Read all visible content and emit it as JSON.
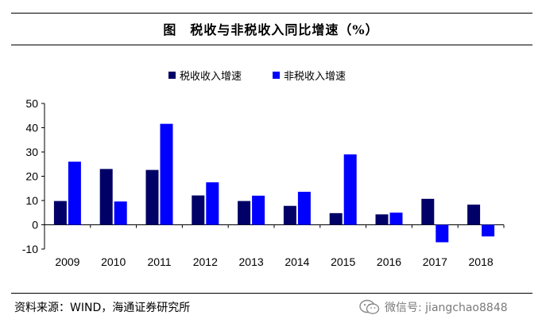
{
  "header": {
    "title": "图　税收与非税收入同比增速（%）"
  },
  "footer": {
    "source": "资料来源：WIND，海通证券研究所",
    "watermark": "微信号: jiangchao8848"
  },
  "chart_data": {
    "type": "bar",
    "title": "",
    "xlabel": "",
    "ylabel": "",
    "categories": [
      "2009",
      "2010",
      "2011",
      "2012",
      "2013",
      "2014",
      "2015",
      "2016",
      "2017",
      "2018"
    ],
    "series": [
      {
        "name": "税收收入增速",
        "color": "#000066",
        "values": [
          9.8,
          23.0,
          22.6,
          12.1,
          9.8,
          7.8,
          4.8,
          4.3,
          10.7,
          8.3
        ]
      },
      {
        "name": "非税收入增速",
        "color": "#0000ff",
        "values": [
          26.0,
          9.6,
          41.6,
          17.5,
          12.0,
          13.6,
          29.0,
          5.0,
          -7.2,
          -4.8
        ]
      }
    ],
    "ylim": [
      -10,
      50
    ],
    "yticks": [
      -10,
      0,
      10,
      20,
      30,
      40,
      50
    ],
    "grid": false,
    "legend": "top-center"
  }
}
